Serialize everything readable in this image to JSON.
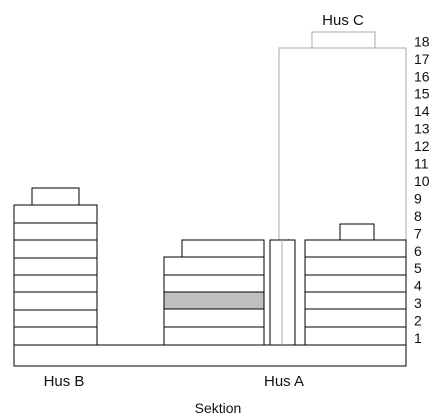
{
  "labels": {
    "hus_a": "Hus A",
    "hus_b": "Hus B",
    "hus_c": "Hus C",
    "title": "Sektion"
  },
  "floor_numbers": [
    "1",
    "2",
    "3",
    "4",
    "5",
    "6",
    "7",
    "8",
    "9",
    "10",
    "11",
    "12",
    "13",
    "14",
    "15",
    "16",
    "17",
    "18"
  ],
  "colors": {
    "line": "#000000",
    "ghost_outline": "#a8a8a8",
    "highlight_floor": "#c0c0c0",
    "background": "#ffffff"
  },
  "highlighted_floor": {
    "building": "Hus A",
    "floor": 3
  }
}
